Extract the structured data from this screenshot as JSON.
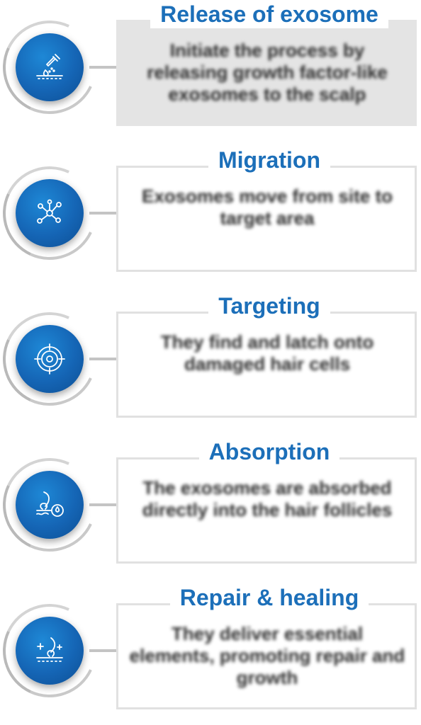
{
  "steps": [
    {
      "title": "Release of exosome",
      "description": "Initiate the process by releasing growth factor-like exosomes to the scalp",
      "icon": "dropper-skin-icon",
      "shaded": true
    },
    {
      "title": "Migration",
      "description": "Exosomes move from site to target area",
      "icon": "molecule-network-icon",
      "shaded": false
    },
    {
      "title": "Targeting",
      "description": "They find and latch onto damaged hair cells",
      "icon": "target-crosshair-icon",
      "shaded": false
    },
    {
      "title": "Absorption",
      "description": "The exosomes are absorbed directly into the hair follicles",
      "icon": "hair-follicle-drop-icon",
      "shaded": false
    },
    {
      "title": "Repair & healing",
      "description": "They deliver essential elements, promoting repair and growth",
      "icon": "hair-sparkle-icon",
      "shaded": false
    }
  ],
  "colors": {
    "accent": "#1c6fb9",
    "circle": "#1565b5",
    "card_border": "#e1e1e1",
    "card_fill_first": "#e4e4e4",
    "text": "#2c2c2c"
  }
}
